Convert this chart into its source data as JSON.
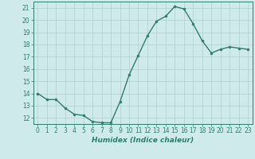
{
  "x": [
    0,
    1,
    2,
    3,
    4,
    5,
    6,
    7,
    8,
    9,
    10,
    11,
    12,
    13,
    14,
    15,
    16,
    17,
    18,
    19,
    20,
    21,
    22,
    23
  ],
  "y": [
    14.0,
    13.5,
    13.5,
    12.8,
    12.3,
    12.2,
    11.7,
    11.6,
    11.6,
    13.3,
    15.5,
    17.1,
    18.7,
    19.9,
    20.3,
    21.1,
    20.9,
    19.7,
    18.3,
    17.3,
    17.6,
    17.8,
    17.7,
    17.6
  ],
  "line_color": "#2e7d6e",
  "marker": "o",
  "markersize": 2.0,
  "linewidth": 1.0,
  "xlabel": "Humidex (Indice chaleur)",
  "xlabel_fontsize": 6.5,
  "xlim": [
    -0.5,
    23.5
  ],
  "ylim": [
    11.5,
    21.5
  ],
  "yticks": [
    12,
    13,
    14,
    15,
    16,
    17,
    18,
    19,
    20,
    21
  ],
  "xticks": [
    0,
    1,
    2,
    3,
    4,
    5,
    6,
    7,
    8,
    9,
    10,
    11,
    12,
    13,
    14,
    15,
    16,
    17,
    18,
    19,
    20,
    21,
    22,
    23
  ],
  "background_color": "#ceeaea",
  "grid_color": "#b0cfcf",
  "tick_color": "#2e7d6e",
  "tick_fontsize": 5.5,
  "figsize": [
    3.2,
    2.0
  ],
  "dpi": 100
}
